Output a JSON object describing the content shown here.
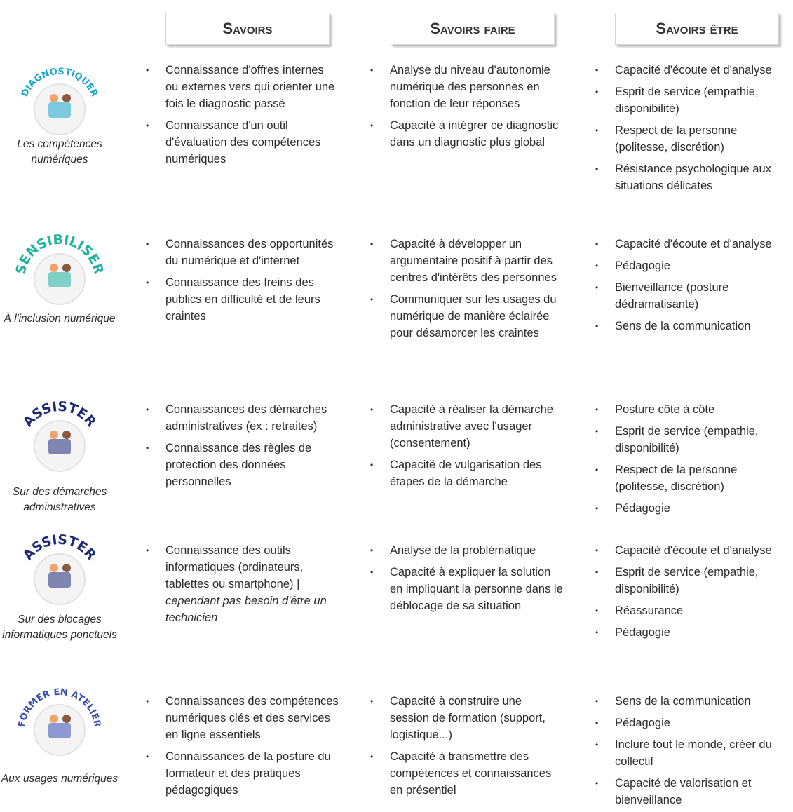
{
  "header": {
    "columns": [
      "Savoirs",
      "Savoirs faire",
      "Savoirs être"
    ]
  },
  "rows": [
    {
      "icon_label": "DIAGNOSTIQUER",
      "subtitle": "Les compétences numériques",
      "columns": [
        [
          "Connaissance d'offres internes ou externes vers qui orienter une fois le diagnostic passé",
          "Connaissance d'un outil d'évaluation des compétences numériques"
        ],
        [
          "Analyse du niveau d'autonomie numérique des personnes en fonction de leur réponses",
          "Capacité à intégrer ce diagnostic dans un diagnostic plus global"
        ],
        [
          "Capacité d'écoute et d'analyse",
          "Esprit de service (empathie, disponibilité)",
          "Respect de la personne (politesse, discrétion)",
          "Résistance psychologique aux situations délicates"
        ]
      ]
    },
    {
      "icon_label": "SENSIBILISER",
      "subtitle": "À l'inclusion numérique",
      "columns": [
        [
          "Connaissances des opportunités du numérique et d'internet",
          "Connaissance des freins des publics en difficulté et de leurs craintes"
        ],
        [
          "Capacité à développer un argumentaire positif à partir des centres d'intérêts des personnes",
          "Communiquer sur les usages du numérique de manière éclairée pour désamorcer les craintes"
        ],
        [
          "Capacité d'écoute et d'analyse",
          "Pédagogie",
          "Bienveillance (posture dédramatisante)",
          "Sens de la communication"
        ]
      ]
    },
    {
      "icon_label": "ASSISTER",
      "subtitle": "Sur des démarches administratives",
      "columns": [
        [
          "Connaissances des démarches administratives (ex : retraites)",
          "Connaissance des règles de protection des données personnelles"
        ],
        [
          "Capacité à réaliser la démarche administrative avec l'usager (consentement)",
          "Capacité de vulgarisation des étapes de la démarche"
        ],
        [
          "Posture côte à côte",
          "Esprit de service (empathie, disponibilité)",
          "Respect de la personne (politesse, discrétion)",
          "Pédagogie"
        ]
      ]
    },
    {
      "icon_label": "ASSISTER",
      "subtitle": "Sur des blocages informatiques ponctuels",
      "columns": [
        [
          {
            "text": "Connaissance des outils informatiques (ordinateurs, tablettes ou smartphone) |",
            "emphasis": "cependant pas besoin d'être un technicien"
          }
        ],
        [
          "Analyse de la problématique",
          "Capacité à expliquer la solution en impliquant la personne dans le déblocage de sa situation"
        ],
        [
          "Capacité d'écoute et d'analyse",
          "Esprit de service (empathie, disponibilité)",
          "Réassurance",
          "Pédagogie"
        ]
      ]
    },
    {
      "icon_label": "FORMER EN ATELIER",
      "subtitle": "Aux usages numériques",
      "columns": [
        [
          "Connaissances des compétences numériques clés et des services en ligne essentiels",
          "Connaissances de la posture du formateur et des pratiques pédagogiques"
        ],
        [
          "Capacité à construire une session de formation (support, logistique...)",
          "Capacité à transmettre des compétences et connaissances en présentiel"
        ],
        [
          "Sens de la communication",
          "Pédagogie",
          "Inclure tout le monde, créer du collectif",
          "Capacité de valorisation et bienveillance"
        ]
      ]
    }
  ]
}
